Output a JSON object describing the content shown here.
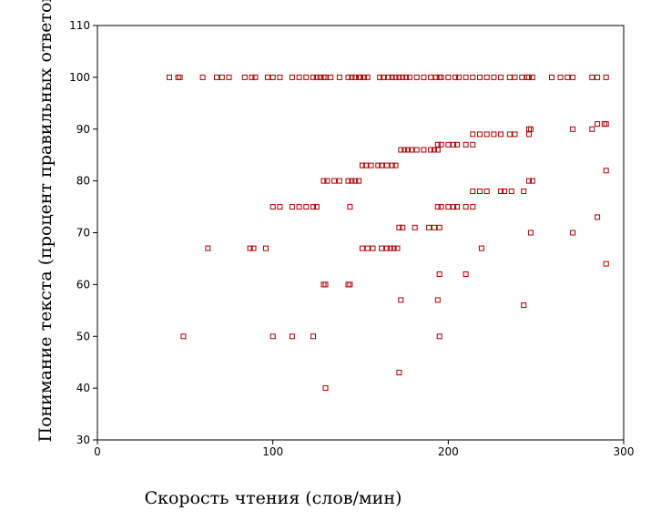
{
  "chart_data": {
    "type": "scatter",
    "title": "",
    "xlabel": "Скорость чтения (слов/мин)",
    "ylabel": "Понимание текста (процент правильных ответов)",
    "xlim": [
      0,
      300
    ],
    "ylim": [
      30,
      110
    ],
    "xticks": [
      "0",
      "100",
      "200",
      "300"
    ],
    "yticks": [
      "30",
      "40",
      "50",
      "60",
      "70",
      "80",
      "90",
      "100",
      "110"
    ],
    "grid": false,
    "legend": "none",
    "marker": "hollow-square",
    "marker_color": "#aa0000",
    "points": [
      [
        41,
        100
      ],
      [
        46,
        100
      ],
      [
        47,
        100
      ],
      [
        60,
        100
      ],
      [
        68,
        100
      ],
      [
        71,
        100
      ],
      [
        75,
        100
      ],
      [
        84,
        100
      ],
      [
        88,
        100
      ],
      [
        90,
        100
      ],
      [
        97,
        100
      ],
      [
        100,
        100
      ],
      [
        104,
        100
      ],
      [
        111,
        100
      ],
      [
        115,
        100
      ],
      [
        119,
        100
      ],
      [
        123,
        100
      ],
      [
        125,
        100
      ],
      [
        127,
        100
      ],
      [
        129,
        100
      ],
      [
        130,
        100
      ],
      [
        133,
        100
      ],
      [
        138,
        100
      ],
      [
        143,
        100
      ],
      [
        145,
        100
      ],
      [
        147,
        100
      ],
      [
        149,
        100
      ],
      [
        150,
        100
      ],
      [
        152,
        100
      ],
      [
        154,
        100
      ],
      [
        161,
        100
      ],
      [
        163,
        100
      ],
      [
        166,
        100
      ],
      [
        168,
        100
      ],
      [
        170,
        100
      ],
      [
        172,
        100
      ],
      [
        174,
        100
      ],
      [
        176,
        100
      ],
      [
        178,
        100
      ],
      [
        182,
        100
      ],
      [
        186,
        100
      ],
      [
        190,
        100
      ],
      [
        193,
        100
      ],
      [
        195,
        100
      ],
      [
        196,
        100
      ],
      [
        200,
        100
      ],
      [
        204,
        100
      ],
      [
        206,
        100
      ],
      [
        210,
        100
      ],
      [
        214,
        100
      ],
      [
        218,
        100
      ],
      [
        222,
        100
      ],
      [
        226,
        100
      ],
      [
        230,
        100
      ],
      [
        235,
        100
      ],
      [
        238,
        100
      ],
      [
        242,
        100
      ],
      [
        245,
        100
      ],
      [
        246,
        100
      ],
      [
        248,
        100
      ],
      [
        259,
        100
      ],
      [
        264,
        100
      ],
      [
        268,
        100
      ],
      [
        271,
        100
      ],
      [
        282,
        100
      ],
      [
        285,
        100
      ],
      [
        290,
        100
      ],
      [
        246,
        90
      ],
      [
        271,
        90
      ],
      [
        282,
        90
      ],
      [
        285,
        91
      ],
      [
        289,
        91
      ],
      [
        290,
        91
      ],
      [
        247,
        90
      ],
      [
        246,
        89
      ],
      [
        214,
        89
      ],
      [
        218,
        89
      ],
      [
        222,
        89
      ],
      [
        226,
        89
      ],
      [
        230,
        89
      ],
      [
        235,
        89
      ],
      [
        238,
        89
      ],
      [
        194,
        87
      ],
      [
        196,
        87
      ],
      [
        200,
        87
      ],
      [
        203,
        87
      ],
      [
        205,
        87
      ],
      [
        210,
        87
      ],
      [
        214,
        87
      ],
      [
        173,
        86
      ],
      [
        175,
        86
      ],
      [
        177,
        86
      ],
      [
        179,
        86
      ],
      [
        182,
        86
      ],
      [
        186,
        86
      ],
      [
        190,
        86
      ],
      [
        192,
        86
      ],
      [
        194,
        86
      ],
      [
        151,
        83
      ],
      [
        153,
        83
      ],
      [
        156,
        83
      ],
      [
        160,
        83
      ],
      [
        162,
        83
      ],
      [
        165,
        83
      ],
      [
        168,
        83
      ],
      [
        170,
        83
      ],
      [
        129,
        80
      ],
      [
        131,
        80
      ],
      [
        135,
        80
      ],
      [
        138,
        80
      ],
      [
        143,
        80
      ],
      [
        145,
        80
      ],
      [
        147,
        80
      ],
      [
        149,
        80
      ],
      [
        246,
        80
      ],
      [
        248,
        80
      ],
      [
        290,
        82
      ],
      [
        100,
        75
      ],
      [
        104,
        75
      ],
      [
        111,
        75
      ],
      [
        115,
        75
      ],
      [
        119,
        75
      ],
      [
        123,
        75
      ],
      [
        125,
        75
      ],
      [
        144,
        75
      ],
      [
        194,
        75
      ],
      [
        196,
        75
      ],
      [
        200,
        75
      ],
      [
        203,
        75
      ],
      [
        205,
        75
      ],
      [
        210,
        75
      ],
      [
        214,
        75
      ],
      [
        214,
        78
      ],
      [
        218,
        78
      ],
      [
        222,
        78
      ],
      [
        230,
        78
      ],
      [
        232,
        78
      ],
      [
        236,
        78
      ],
      [
        243,
        78
      ],
      [
        172,
        71
      ],
      [
        174,
        71
      ],
      [
        181,
        71
      ],
      [
        189,
        71
      ],
      [
        192,
        71
      ],
      [
        195,
        71
      ],
      [
        247,
        70
      ],
      [
        271,
        70
      ],
      [
        285,
        73
      ],
      [
        63,
        67
      ],
      [
        87,
        67
      ],
      [
        89,
        67
      ],
      [
        96,
        67
      ],
      [
        151,
        67
      ],
      [
        154,
        67
      ],
      [
        157,
        67
      ],
      [
        162,
        67
      ],
      [
        165,
        67
      ],
      [
        167,
        67
      ],
      [
        169,
        67
      ],
      [
        171,
        67
      ],
      [
        219,
        67
      ],
      [
        195,
        62
      ],
      [
        210,
        62
      ],
      [
        290,
        64
      ],
      [
        129,
        60
      ],
      [
        130,
        60
      ],
      [
        143,
        60
      ],
      [
        144,
        60
      ],
      [
        173,
        57
      ],
      [
        194,
        57
      ],
      [
        243,
        56
      ],
      [
        49,
        50
      ],
      [
        100,
        50
      ],
      [
        111,
        50
      ],
      [
        123,
        50
      ],
      [
        195,
        50
      ],
      [
        172,
        43
      ],
      [
        130,
        40
      ]
    ]
  }
}
